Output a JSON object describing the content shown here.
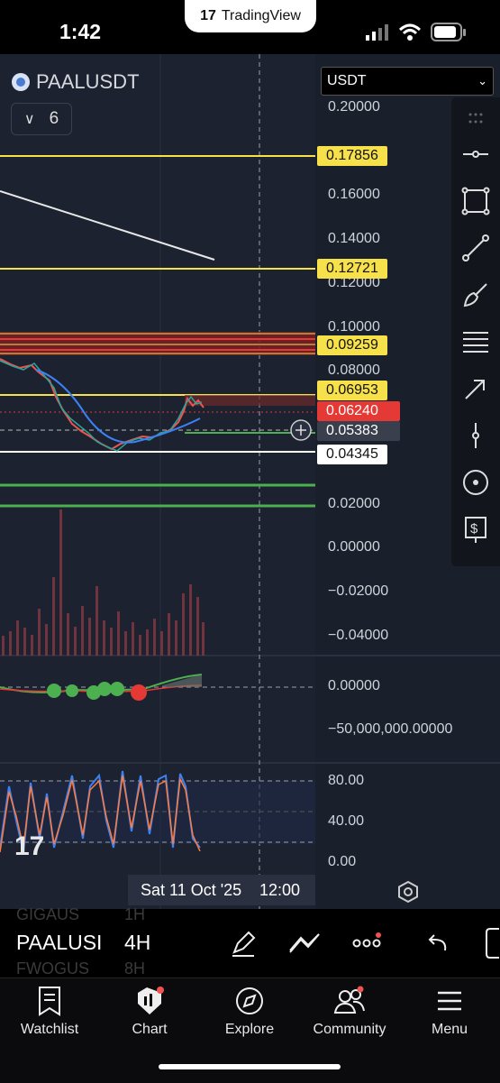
{
  "status_bar": {
    "time": "1:42",
    "app_pill": "TradingView"
  },
  "header": {
    "symbol": "PAALUSDT",
    "collapse_count": "6",
    "currency_select": "USDT"
  },
  "price_axis": [
    "0.20000",
    "0.16000",
    "0.14000",
    "0.12000",
    "0.10000",
    "0.08000",
    "0.02000",
    "0.00000",
    "−0.02000",
    "−0.04000"
  ],
  "price_tags": [
    {
      "value": "0.17856",
      "color": "#f7e14a",
      "text_color": "#111"
    },
    {
      "value": "0.12721",
      "color": "#f7e14a",
      "text_color": "#111"
    },
    {
      "value": "0.09259",
      "color": "#f7e14a",
      "text_color": "#111"
    },
    {
      "value": "0.06953",
      "color": "#f7e14a",
      "text_color": "#111"
    },
    {
      "value": "0.06240",
      "color": "#e53935",
      "text_color": "#fff"
    },
    {
      "value": "0.05383",
      "color": "#3a3f4d",
      "text_color": "#fff"
    },
    {
      "value": "0.04345",
      "color": "#ffffff",
      "text_color": "#111"
    }
  ],
  "osc_axis": [
    "0.00000",
    "−50,000,000.00000"
  ],
  "rsi_axis": [
    "80.00",
    "40.00",
    "0.00"
  ],
  "crosshair_time": {
    "date": "Sat 11 Oct '25",
    "time": "12:00"
  },
  "bottom_toolbar": {
    "symbol": "PAALUSI",
    "interval": "4H",
    "ghost_rows": [
      {
        "symbol": "GIGAUS",
        "interval": "1H"
      },
      {
        "symbol": "FWOGUS",
        "interval": "8H"
      }
    ]
  },
  "tabs": [
    "Watchlist",
    "Chart",
    "Explore",
    "Community",
    "Menu"
  ],
  "colors": {
    "background": "#1d2230",
    "level_yellow": "#f7e14a",
    "level_green": "#4caf50",
    "level_red": "#e53935",
    "candle_up": "#26a69a",
    "candle_down": "#ef5350",
    "ma_blue": "#3b82f6"
  },
  "icons": [
    "search-icon"
  ]
}
